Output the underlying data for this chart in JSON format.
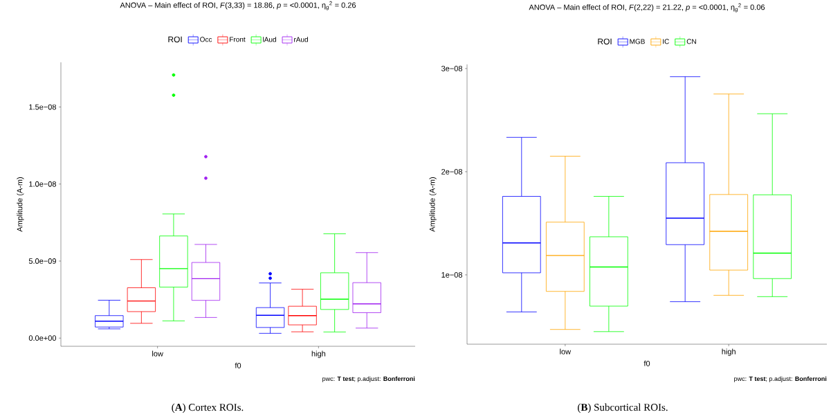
{
  "chart_data": [
    {
      "type": "box",
      "title": "ANOVA – Main effect of ROI, *F*(3,33) = 18.86, *p* = <0.0001, η$_{g}$$^{2}$ = 0.26",
      "xlabel": "f0",
      "ylabel": "Amplitude (A-m)",
      "legend_title": "ROI",
      "legend": "top",
      "categories": [
        "low",
        "high"
      ],
      "ylim": [
        -5.3e-10,
        1.79e-08
      ],
      "yticks": [
        {
          "value": 0,
          "label": "0.0e+00"
        },
        {
          "value": 5e-09,
          "label": "5.0e−09"
        },
        {
          "value": 1e-08,
          "label": "1.0e−08"
        },
        {
          "value": 1.5e-08,
          "label": "1.5e−08"
        }
      ],
      "series": [
        {
          "name": "Occ",
          "color": "#0000ff",
          "boxes": [
            {
              "low": 6e-10,
              "q1": 7.2e-10,
              "median": 1.1e-09,
              "q3": 1.46e-09,
              "high": 2.46e-09
            },
            {
              "low": 3.1e-10,
              "q1": 6.9e-10,
              "median": 1.48e-09,
              "q3": 1.98e-09,
              "high": 3.58e-09,
              "outliers": [
                4.18e-09,
                3.89e-09
              ]
            }
          ]
        },
        {
          "name": "Front",
          "color": "#ff0000",
          "boxes": [
            {
              "low": 9.6e-10,
              "q1": 1.72e-09,
              "median": 2.41e-09,
              "q3": 3.27e-09,
              "high": 5.1e-09
            },
            {
              "low": 4.1e-10,
              "q1": 8.6e-10,
              "median": 1.46e-09,
              "q3": 2.07e-09,
              "high": 3.17e-09
            }
          ]
        },
        {
          "name": "lAud",
          "color": "#00ff00",
          "boxes": [
            {
              "low": 1.12e-09,
              "q1": 3.31e-09,
              "median": 4.51e-09,
              "q3": 6.63e-09,
              "high": 8.06e-09,
              "outliers": [
                1.708e-08,
                1.577e-08
              ]
            },
            {
              "low": 4e-10,
              "q1": 1.86e-09,
              "median": 2.53e-09,
              "q3": 4.24e-09,
              "high": 6.77e-09
            }
          ]
        },
        {
          "name": "rAud",
          "color": "#a020f0",
          "boxes": [
            {
              "low": 1.34e-09,
              "q1": 2.45e-09,
              "median": 3.86e-09,
              "q3": 4.91e-09,
              "high": 6.08e-09,
              "outliers": [
                1.178e-08,
                1.038e-08
              ]
            },
            {
              "low": 6.5e-10,
              "q1": 1.65e-09,
              "median": 2.22e-09,
              "q3": 3.6e-09,
              "high": 5.55e-09
            }
          ]
        }
      ],
      "annotations": [
        "pwc: **T test**; p.adjust: **Bonferroni**",
        "(**A**) Cortex ROIs."
      ]
    },
    {
      "type": "box",
      "title": "ANOVA – Main effect of ROI, *F*(2,22) = 21.22, *p* = <0.0001, η$_{g}$$^{2}$ = 0.06",
      "xlabel": "f0",
      "ylabel": "Amplitude (A-m)",
      "legend_title": "ROI",
      "legend": "top",
      "categories": [
        "low",
        "high"
      ],
      "ylim": [
        3.28e-09,
        3.04e-08
      ],
      "yticks": [
        {
          "value": 1e-08,
          "label": "1e−08"
        },
        {
          "value": 2e-08,
          "label": "2e−08"
        },
        {
          "value": 3e-08,
          "label": "3e−08"
        }
      ],
      "series": [
        {
          "name": "MGB",
          "color": "#0000ff",
          "boxes": [
            {
              "low": 6.41e-09,
              "q1": 1.02e-08,
              "median": 1.31e-08,
              "q3": 1.761e-08,
              "high": 2.333e-08
            },
            {
              "low": 7.4e-09,
              "q1": 1.293e-08,
              "median": 1.55e-08,
              "q3": 2.087e-08,
              "high": 2.921e-08
            }
          ]
        },
        {
          "name": "IC",
          "color": "#ffa500",
          "boxes": [
            {
              "low": 4.71e-09,
              "q1": 8.4e-09,
              "median": 1.188e-08,
              "q3": 1.511e-08,
              "high": 2.15e-08
            },
            {
              "low": 8.02e-09,
              "q1": 1.046e-08,
              "median": 1.422e-08,
              "q3": 1.779e-08,
              "high": 2.753e-08
            }
          ]
        },
        {
          "name": "CN",
          "color": "#00ff00",
          "boxes": [
            {
              "low": 4.5e-09,
              "q1": 6.97e-09,
              "median": 1.076e-08,
              "q3": 1.369e-08,
              "high": 1.761e-08
            },
            {
              "low": 7.89e-09,
              "q1": 9.64e-09,
              "median": 1.211e-08,
              "q3": 1.776e-08,
              "high": 2.562e-08
            }
          ]
        }
      ],
      "annotations": [
        "pwc: **T test**; p.adjust: **Bonferroni**",
        "(**B**) Subcortical ROIs."
      ]
    }
  ]
}
